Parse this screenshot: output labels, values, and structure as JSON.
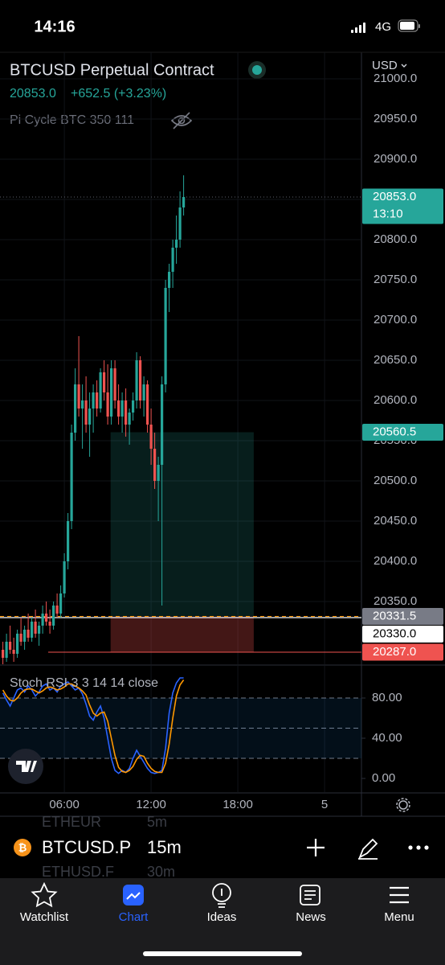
{
  "status_bar": {
    "time": "14:16",
    "network": "4G"
  },
  "header": {
    "title": "BTCUSD Perpetual Contract",
    "price": "20853.0",
    "change": "+652.5 (+3.23%)",
    "indicator": "Pi Cycle BTC 350 111",
    "currency": "USD"
  },
  "chart_data": [
    {
      "type": "candlestick",
      "x": [
        1.75,
        2,
        2.25,
        2.5,
        2.75,
        3,
        3.25,
        3.5,
        3.75,
        4,
        4.25,
        4.5,
        4.75,
        5,
        5.25,
        5.5,
        5.75,
        6,
        6.25,
        6.5,
        6.75,
        7,
        7.25,
        7.5,
        7.75,
        8,
        8.25,
        8.5,
        8.75,
        9,
        9.25,
        9.5,
        9.75,
        10,
        10.25,
        10.5,
        10.75,
        11,
        11.25,
        11.5,
        11.75,
        12,
        12.25,
        12.5,
        12.75,
        13,
        13.25,
        13.5,
        13.75,
        14,
        14.25
      ],
      "open": [
        20290,
        20280,
        20300,
        20290,
        20285,
        20310,
        20300,
        20315,
        20305,
        20325,
        20310,
        20320,
        20335,
        20325,
        20320,
        20345,
        20335,
        20360,
        20400,
        20450,
        20560,
        20620,
        20590,
        20600,
        20570,
        20590,
        20610,
        20590,
        20635,
        20610,
        20580,
        20640,
        20600,
        20580,
        20600,
        20570,
        20585,
        20600,
        20650,
        20600,
        20620,
        20570,
        20540,
        20500,
        20520,
        20620,
        20740,
        20760,
        20790,
        20800,
        20840
      ],
      "high": [
        20300,
        20310,
        20320,
        20305,
        20315,
        20330,
        20320,
        20335,
        20330,
        20340,
        20325,
        20345,
        20350,
        20340,
        20350,
        20360,
        20370,
        20410,
        20460,
        20570,
        20640,
        20680,
        20620,
        20630,
        20610,
        20620,
        20625,
        20640,
        20650,
        20645,
        20650,
        20650,
        20620,
        20610,
        20615,
        20590,
        20610,
        20660,
        20655,
        20630,
        20625,
        20590,
        20560,
        20530,
        20630,
        20750,
        20770,
        20800,
        20830,
        20860,
        20880
      ],
      "low": [
        20270,
        20275,
        20285,
        20275,
        20280,
        20295,
        20290,
        20300,
        20300,
        20305,
        20295,
        20310,
        20320,
        20310,
        20315,
        20330,
        20330,
        20355,
        20390,
        20440,
        20550,
        20580,
        20540,
        20560,
        20530,
        20560,
        20580,
        20585,
        20600,
        20570,
        20570,
        20590,
        20570,
        20560,
        20555,
        20545,
        20575,
        20590,
        20590,
        20580,
        20560,
        20520,
        20490,
        20450,
        20345,
        20610,
        20710,
        20740,
        20770,
        20790,
        20830
      ],
      "close": [
        20280,
        20300,
        20290,
        20285,
        20310,
        20300,
        20315,
        20305,
        20325,
        20310,
        20320,
        20335,
        20325,
        20320,
        20345,
        20335,
        20360,
        20400,
        20450,
        20560,
        20620,
        20590,
        20600,
        20570,
        20590,
        20610,
        20590,
        20635,
        20610,
        20580,
        20640,
        20600,
        20580,
        20600,
        20570,
        20585,
        20600,
        20650,
        20600,
        20620,
        20570,
        20540,
        20500,
        20520,
        20620,
        20740,
        20760,
        20790,
        20800,
        20840,
        20853
      ],
      "up_color": "#26a69a",
      "down_color": "#ef5350",
      "xlim": [
        1.55,
        26.55
      ],
      "xticks": [
        {
          "value": 6,
          "label": "06:00"
        },
        {
          "value": 12,
          "label": "12:00"
        },
        {
          "value": 18,
          "label": "18:00"
        },
        {
          "value": 24,
          "label": "5"
        }
      ],
      "ylim": [
        20272,
        21033
      ],
      "yticks": [
        {
          "value": 21000,
          "label": "21000.0"
        },
        {
          "value": 20950,
          "label": "20950.0"
        },
        {
          "value": 20900,
          "label": "20900.0"
        },
        {
          "value": 20850,
          "label": "20850.0"
        },
        {
          "value": 20800,
          "label": "20800.0"
        },
        {
          "value": 20750,
          "label": "20750.0"
        },
        {
          "value": 20700,
          "label": "20700.0"
        },
        {
          "value": 20650,
          "label": "20650.0"
        },
        {
          "value": 20600,
          "label": "20600.0"
        },
        {
          "value": 20550,
          "label": "20550.0"
        },
        {
          "value": 20500,
          "label": "20500.0"
        },
        {
          "value": 20450,
          "label": "20450.0"
        },
        {
          "value": 20400,
          "label": "20400.0"
        },
        {
          "value": 20350,
          "label": "20350.0"
        }
      ],
      "position": {
        "x": [
          9.2,
          19.1
        ],
        "entry": 20560.5,
        "target": 20331.5,
        "stop": 20287
      },
      "price_labels": [
        {
          "value": 20853,
          "label": "20853.0",
          "sub": "13:10",
          "color": "#26a69a",
          "text_color": "#ffffff"
        },
        {
          "value": 20560.5,
          "color": "#26a69a",
          "text_color": "#ffffff"
        },
        {
          "value": 20331.5,
          "color": "#787b86",
          "text_color": "#ffffff"
        },
        {
          "value": 20330,
          "label": "20330.0",
          "color": "#ffffff",
          "text_color": "#000000"
        },
        {
          "value": 20287,
          "label": "20287.0",
          "color": "#ef5350",
          "text_color": "#ffffff"
        }
      ]
    },
    {
      "type": "line",
      "title": "Stoch RSI 3 3 14 14 close",
      "series": [
        {
          "color": "#2962ff",
          "values": [
            85,
            78,
            72,
            80,
            88,
            90,
            86,
            92,
            88,
            82,
            86,
            92,
            94,
            88,
            90,
            86,
            92,
            94,
            96,
            92,
            88,
            90,
            84,
            74,
            62,
            58,
            66,
            72,
            60,
            40,
            20,
            8,
            5,
            8,
            6,
            10,
            20,
            28,
            22,
            16,
            10,
            6,
            5,
            6,
            8,
            30,
            65,
            85,
            95,
            100,
            100
          ]
        },
        {
          "color": "#ff9800",
          "values": [
            88,
            82,
            78,
            77,
            80,
            85,
            88,
            89,
            89,
            87,
            85,
            87,
            90,
            91,
            90,
            88,
            89,
            91,
            94,
            94,
            92,
            90,
            87,
            83,
            73,
            65,
            62,
            65,
            66,
            57,
            40,
            23,
            11,
            7,
            6,
            8,
            12,
            19,
            23,
            22,
            15,
            10,
            7,
            6,
            6,
            15,
            34,
            60,
            82,
            93,
            98
          ]
        }
      ],
      "band_lines": [
        80,
        50,
        20
      ],
      "ylim": [
        -13.6,
        112
      ],
      "yticks": [
        {
          "value": 80,
          "label": "80.00"
        },
        {
          "value": 40,
          "label": "40.00"
        },
        {
          "value": 0,
          "label": "0.00"
        }
      ]
    }
  ],
  "toolbar": {
    "symbol": "BTCUSD.P",
    "interval": "15m",
    "faded_rows": [
      {
        "symbol": "ETHEUR",
        "interval": "5m"
      },
      {
        "symbol": "ETHUSD.F",
        "interval": "30m"
      }
    ]
  },
  "tabs": [
    "Watchlist",
    "Chart",
    "Ideas",
    "News",
    "Menu"
  ]
}
